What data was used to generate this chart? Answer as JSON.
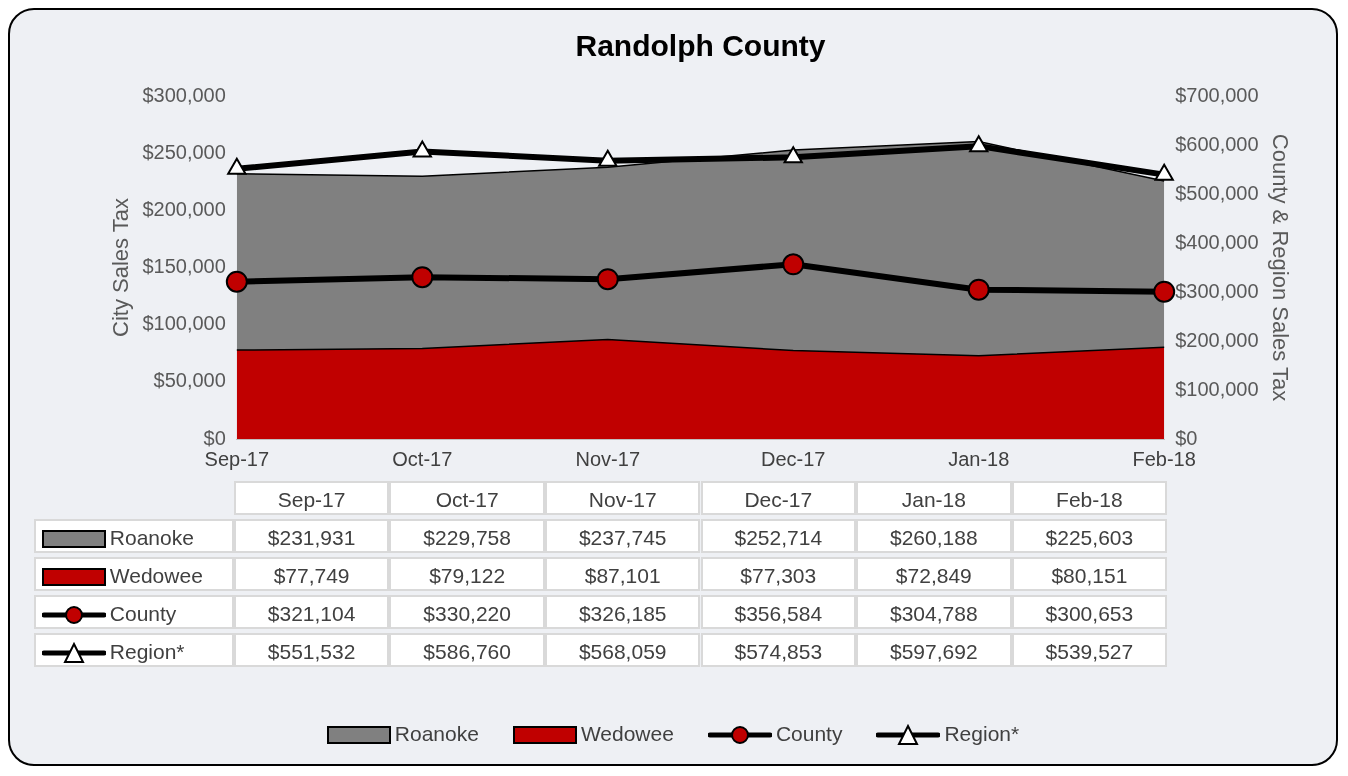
{
  "chart_data": {
    "type": "area",
    "title": "Randolph County",
    "ylabel": "City Sales Tax",
    "y2label": "County & Region Sales Tax",
    "categories": [
      "Sep-17",
      "Oct-17",
      "Nov-17",
      "Dec-17",
      "Jan-18",
      "Feb-18"
    ],
    "series": [
      {
        "name": "Roanoke",
        "type": "area",
        "color": "#808080",
        "values": [
          231931,
          229758,
          237745,
          252714,
          260188,
          225603
        ],
        "value_labels": [
          "$231,931",
          "$229,758",
          "$237,745",
          "$252,714",
          "$260,188",
          "$225,603"
        ]
      },
      {
        "name": "Wedowee",
        "type": "area",
        "color": "#c00000",
        "values": [
          77749,
          79122,
          87101,
          77303,
          72849,
          80151
        ],
        "value_labels": [
          "$77,749",
          "$79,122",
          "$87,101",
          "$77,303",
          "$72,849",
          "$80,151"
        ]
      },
      {
        "name": "County",
        "type": "line",
        "axis": "y2",
        "marker": "circle",
        "color": "#c00000",
        "values": [
          321104,
          330220,
          326185,
          356584,
          304788,
          300653
        ],
        "value_labels": [
          "$321,104",
          "$330,220",
          "$326,185",
          "$356,584",
          "$304,788",
          "$300,653"
        ]
      },
      {
        "name": "Region*",
        "type": "line",
        "axis": "y2",
        "marker": "triangle",
        "color": "#ffffff",
        "values": [
          551532,
          586760,
          568059,
          574853,
          597692,
          539527
        ],
        "value_labels": [
          "$551,532",
          "$586,760",
          "$568,059",
          "$574,853",
          "$597,692",
          "$539,527"
        ]
      }
    ],
    "ylim": [
      0,
      300000
    ],
    "yticks": [
      {
        "value": 0,
        "label": "$0"
      },
      {
        "value": 50000,
        "label": "$50,000"
      },
      {
        "value": 100000,
        "label": "$100,000"
      },
      {
        "value": 150000,
        "label": "$150,000"
      },
      {
        "value": 200000,
        "label": "$200,000"
      },
      {
        "value": 250000,
        "label": "$250,000"
      },
      {
        "value": 300000,
        "label": "$300,000"
      }
    ],
    "y2lim": [
      0,
      700000
    ],
    "y2ticks": [
      {
        "value": 0,
        "label": "$0"
      },
      {
        "value": 100000,
        "label": "$100,000"
      },
      {
        "value": 200000,
        "label": "$200,000"
      },
      {
        "value": 300000,
        "label": "$300,000"
      },
      {
        "value": 400000,
        "label": "$400,000"
      },
      {
        "value": 500000,
        "label": "$500,000"
      },
      {
        "value": 600000,
        "label": "$600,000"
      },
      {
        "value": 700000,
        "label": "$700,000"
      }
    ],
    "grid": false,
    "legend": "bottom"
  }
}
